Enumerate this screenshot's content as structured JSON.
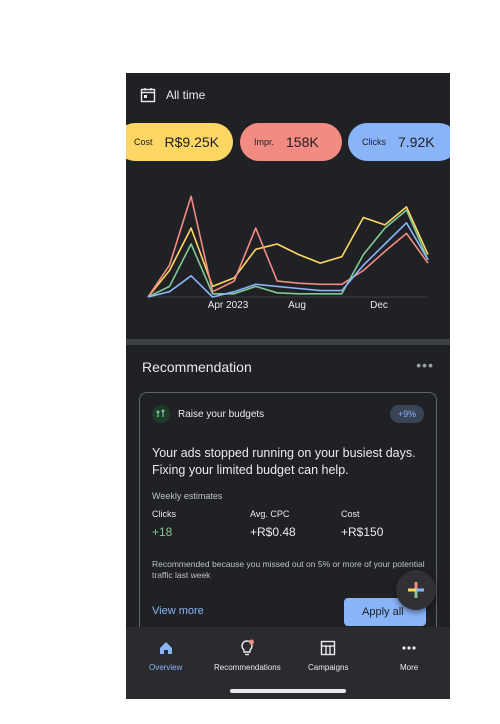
{
  "header": {
    "date_range": "All time"
  },
  "metrics": [
    {
      "label": "Cost",
      "value": "R$9.25K",
      "color": "#fdd663"
    },
    {
      "label": "Impr.",
      "value": "158K",
      "color": "#f28b82"
    },
    {
      "label": "Clicks",
      "value": "7.92K",
      "color": "#8ab4f8"
    }
  ],
  "chart_data": {
    "type": "line",
    "x_ticks": [
      "Apr 2023",
      "Aug",
      "Dec"
    ],
    "series": [
      {
        "values": [
          0,
          25,
          65,
          10,
          18,
          45,
          50,
          40,
          32,
          38,
          75,
          68,
          85,
          40
        ],
        "color": "#fdd663"
      },
      {
        "values": [
          0,
          30,
          95,
          5,
          15,
          65,
          15,
          13,
          12,
          12,
          25,
          43,
          60,
          32
        ],
        "color": "#f28b82"
      },
      {
        "values": [
          0,
          10,
          50,
          3,
          3,
          10,
          4,
          3,
          3,
          3,
          40,
          65,
          82,
          35
        ],
        "color": "#81c995"
      },
      {
        "values": [
          0,
          5,
          20,
          0,
          5,
          12,
          10,
          8,
          6,
          6,
          30,
          50,
          70,
          35
        ],
        "color": "#8ab4f8"
      }
    ]
  },
  "recommendation": {
    "section_title": "Recommendation",
    "more_label": "•••",
    "card_title": "Raise your budgets",
    "badge": "+9%",
    "headline": "Your ads stopped running on your busiest days. Fixing your limited budget can help.",
    "weekly_label": "Weekly estimates",
    "stats": [
      {
        "label": "Clicks",
        "value": "+18"
      },
      {
        "label": "Avg. CPC",
        "value": "+R$0.48"
      },
      {
        "label": "Cost",
        "value": "+R$150"
      }
    ],
    "note": "Recommended because you missed out on 5% or more of your potential traffic last week",
    "view_more": "View more",
    "apply": "Apply all"
  },
  "nav": [
    {
      "label": "Overview"
    },
    {
      "label": "Recommendations"
    },
    {
      "label": "Campaigns"
    },
    {
      "label": "More"
    }
  ]
}
